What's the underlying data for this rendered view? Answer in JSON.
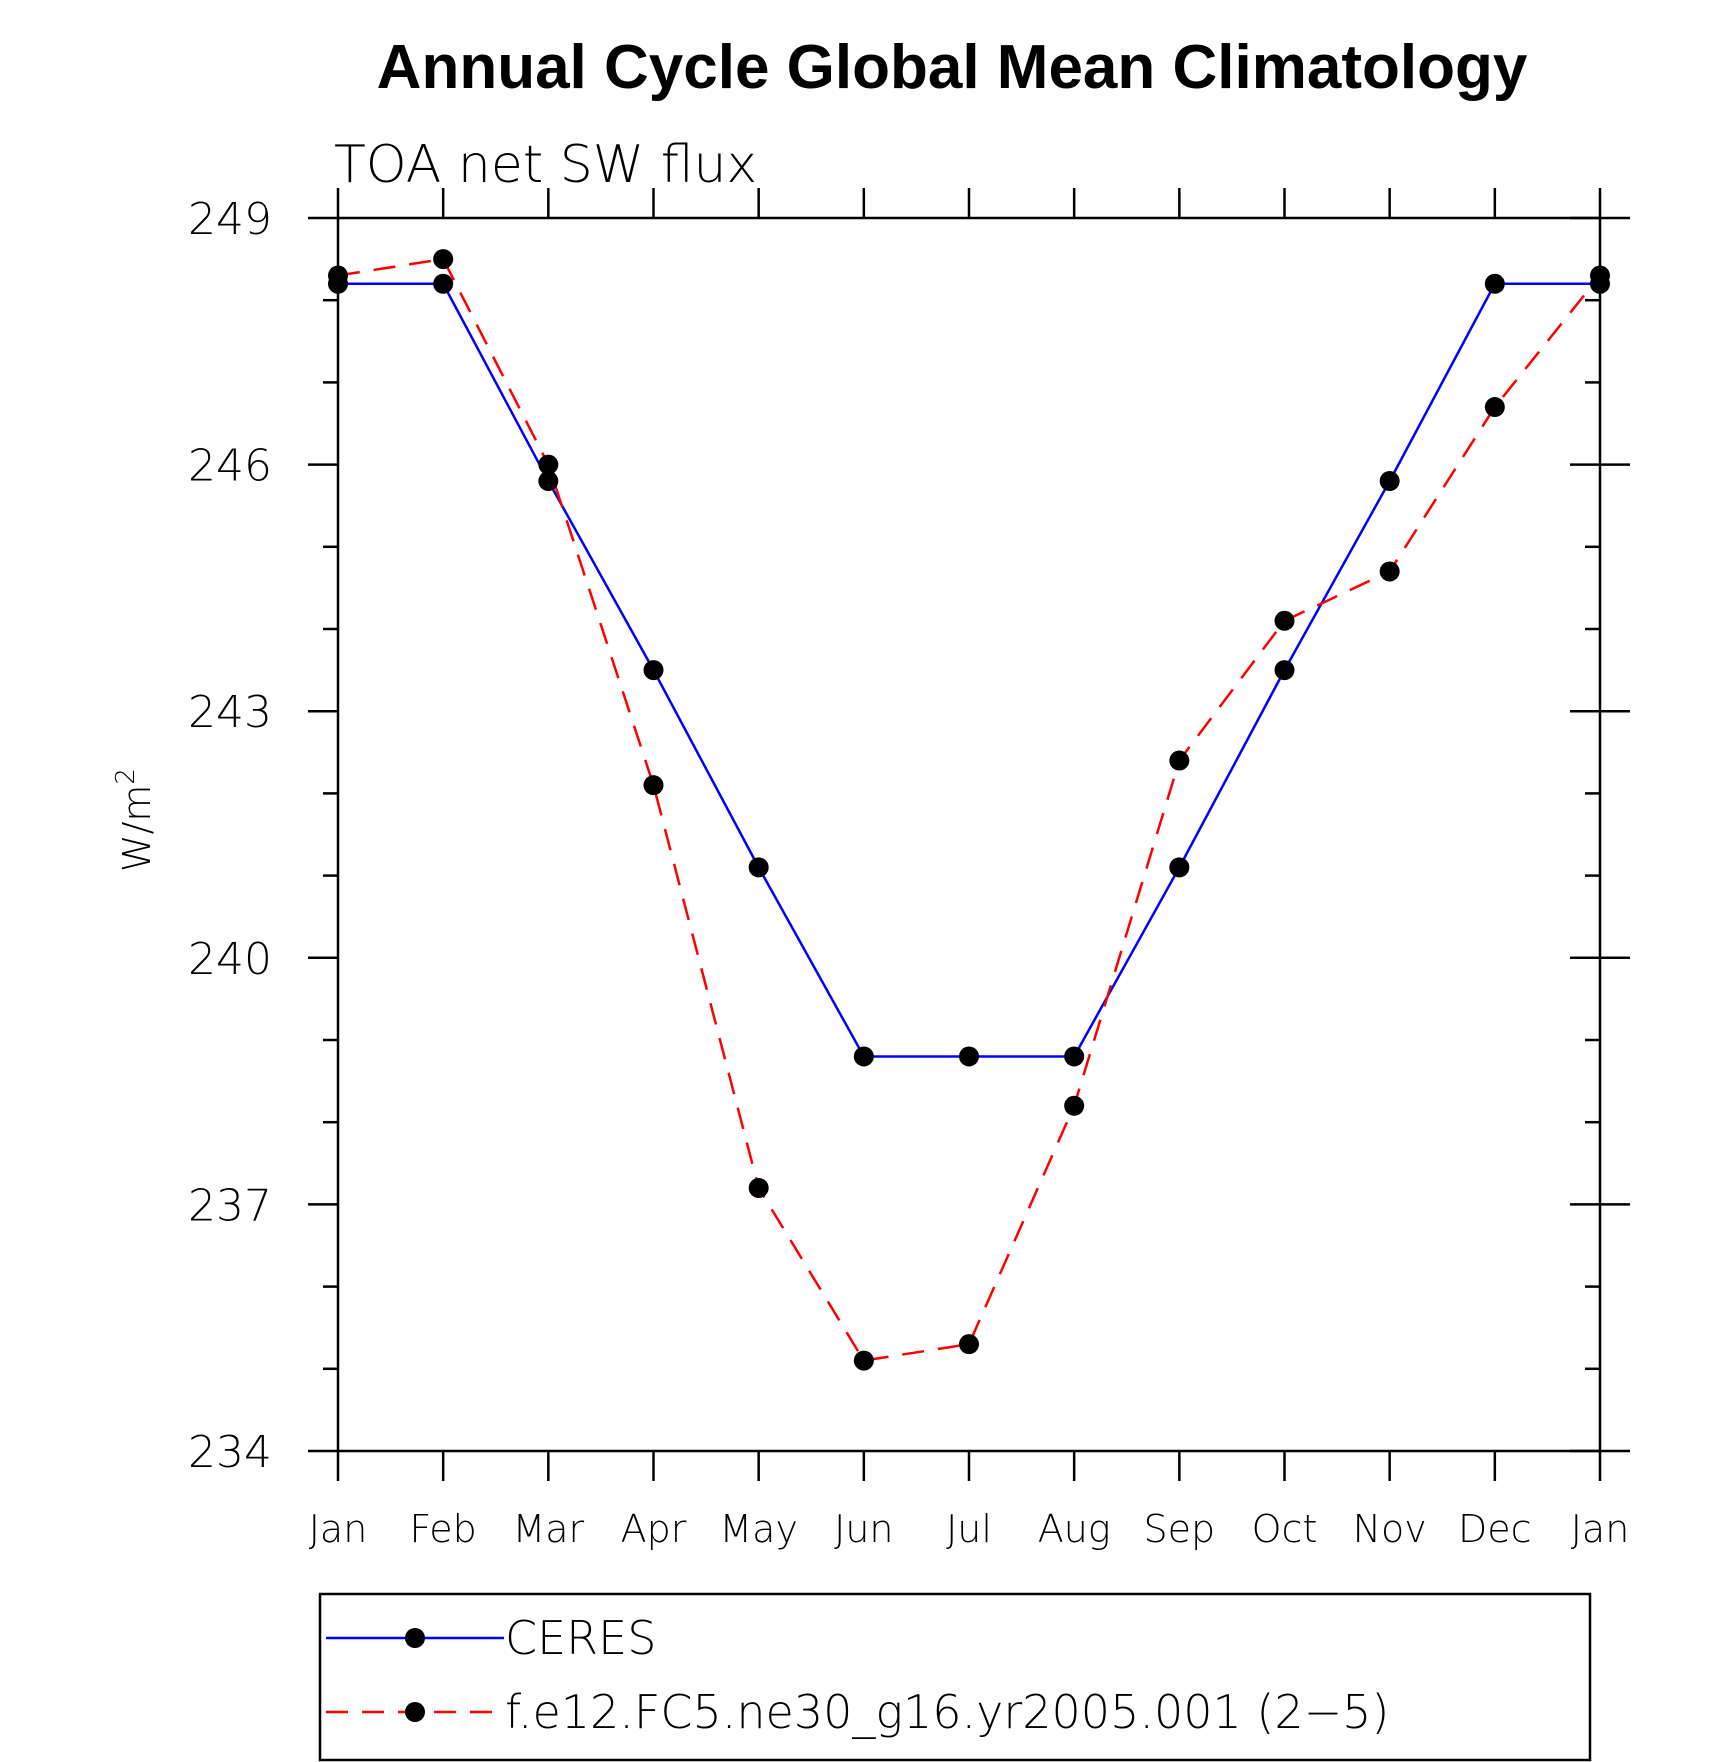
{
  "chart_data": {
    "type": "line",
    "title": "Annual Cycle Global Mean Climatology",
    "subtitle": "TOA net SW flux",
    "ylabel": "W/m",
    "ylabel_superscript": "2",
    "ylim": [
      234,
      249
    ],
    "yticks": [
      "249",
      "246",
      "243",
      "240",
      "237",
      "234"
    ],
    "categories": [
      "Jan",
      "Feb",
      "Mar",
      "Apr",
      "May",
      "Jun",
      "Jul",
      "Aug",
      "Sep",
      "Oct",
      "Nov",
      "Dec",
      "Jan"
    ],
    "series": [
      {
        "name": "CERES",
        "color": "#0000ff",
        "dash": "solid",
        "values": [
          248.2,
          248.2,
          245.8,
          243.5,
          241.1,
          238.8,
          238.8,
          238.8,
          241.1,
          243.5,
          245.8,
          248.2,
          248.2
        ]
      },
      {
        "name": "f.e12.FC5.ne30_g16.yr2005.001 (2−5)",
        "color": "#ff0000",
        "dash": "dashed",
        "values": [
          248.3,
          248.5,
          246.0,
          242.1,
          237.2,
          235.1,
          235.3,
          238.2,
          242.4,
          244.1,
          244.7,
          246.7,
          248.3
        ]
      }
    ],
    "marker_color": "#000000",
    "legend_position": "bottom"
  }
}
